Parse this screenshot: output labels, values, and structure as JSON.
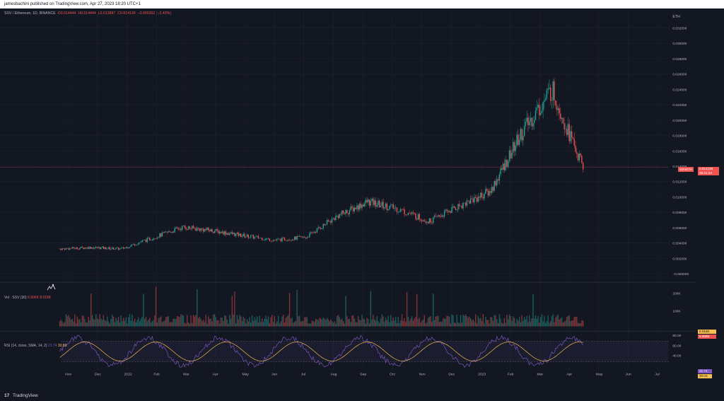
{
  "header": {
    "publisher_line": "jamesbachini published on TradingView.com, Apr 27, 2023 18:20 UTC+1"
  },
  "symbol": {
    "title": "SSV / Ethereum, 1D, BINANCE",
    "open": "O0.014444",
    "high": "H0.014444",
    "low": "L0.013897",
    "close": "C0.014139",
    "change": "−0.000352 (−2.43%)",
    "currency": "ETH"
  },
  "price_axis": {
    "ticks": [
      "0.032000",
      "0.030000",
      "0.028000",
      "0.026000",
      "0.024000",
      "0.022000",
      "0.020000",
      "0.018000",
      "0.016000",
      "0.014000",
      "0.012000",
      "0.010000",
      "0.008000",
      "0.006000",
      "0.004000",
      "0.002000",
      "−0.000000"
    ]
  },
  "last_price": {
    "symbol_label": "SSVETH",
    "price": "0.014139",
    "countdown": "05:31:24",
    "color": "#ef5350"
  },
  "volume": {
    "legend_label": "Vol · SSV (30)",
    "value1": "5.906K",
    "value2": "8.018K",
    "ticks": [
      "200K",
      "100K"
    ],
    "tag1": "8.018K",
    "tag2": "5.906K"
  },
  "rsi": {
    "legend_label": "RSI (14, close, SMA, 14, 2)",
    "value1": "21.74",
    "value2": "30.03",
    "ticks": [
      "80.00",
      "60.00",
      "40.00"
    ],
    "tag1": "21.74",
    "tag2": "30.03"
  },
  "time_axis": {
    "labels": [
      "Nov",
      "Dec",
      "2022",
      "Feb",
      "Mar",
      "Apr",
      "May",
      "Jun",
      "Jul",
      "Aug",
      "Sep",
      "Oct",
      "Nov",
      "Dec",
      "2023",
      "Feb",
      "Mar",
      "Apr",
      "May",
      "Jun",
      "Jul"
    ]
  },
  "footer": {
    "brand": "TradingView",
    "logo_glyph": "17"
  },
  "colors": {
    "up": "#26a69a",
    "down": "#ef5350",
    "rsi_line": "#7e57c2",
    "rsi_ma": "#f5c04e",
    "background": "#131722"
  },
  "chart_data": {
    "type": "candlestick",
    "series": [
      {
        "name": "SSV / Ethereum",
        "x": [
          "Nov 2021",
          "Dec 2021",
          "Jan 2022",
          "Feb 2022",
          "Mar 2022",
          "Apr 2022",
          "May 2022",
          "Jun 2022",
          "Jul 2022",
          "Aug 2022",
          "Sep 2022",
          "Oct 2022",
          "Nov 2022",
          "Dec 2022",
          "Jan 2023",
          "Feb 2023",
          "Mar 2023",
          "Apr 2023"
        ],
        "values": [
          0.003,
          0.0032,
          0.003,
          0.0045,
          0.006,
          0.0055,
          0.0048,
          0.0042,
          0.0046,
          0.0075,
          0.0095,
          0.0085,
          0.0068,
          0.009,
          0.011,
          0.019,
          0.025,
          0.0141
        ]
      }
    ],
    "ylim": [
      0,
      0.033
    ]
  }
}
